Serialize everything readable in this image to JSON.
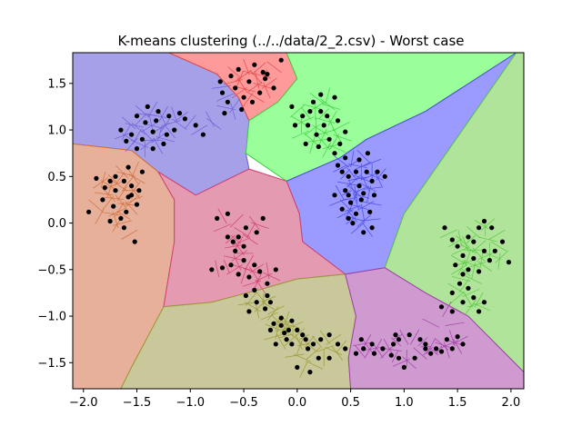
{
  "chart_data": {
    "type": "scatter",
    "title": "K-means clustering (../../data/2_2.csv) - Worst case",
    "xlabel": "",
    "ylabel": "",
    "xlim": [
      -2.1,
      2.12
    ],
    "ylim": [
      -1.78,
      1.83
    ],
    "xticks": [
      -2.0,
      -1.5,
      -1.0,
      -0.5,
      0.0,
      0.5,
      1.0,
      1.5,
      2.0
    ],
    "yticks": [
      -1.5,
      -1.0,
      -0.5,
      0.0,
      0.5,
      1.0,
      1.5
    ],
    "xtick_labels": [
      "−2.0",
      "−1.5",
      "−1.0",
      "−0.5",
      "0.0",
      "0.5",
      "1.0",
      "1.5",
      "2.0"
    ],
    "ytick_labels": [
      "−1.5",
      "−1.0",
      "−0.5",
      "0.0",
      "0.5",
      "1.0",
      "1.5"
    ],
    "grid": false,
    "clusters": [
      {
        "fill": "#a6a0e8",
        "edge": "#6c5fd6",
        "region": [
          [
            -2.1,
            1.83
          ],
          [
            -1.2,
            1.83
          ],
          [
            -0.75,
            1.6
          ],
          [
            -0.55,
            1.35
          ],
          [
            -0.45,
            1.1
          ],
          [
            -0.48,
            0.75
          ],
          [
            -0.45,
            0.58
          ],
          [
            -0.95,
            0.3
          ],
          [
            -1.3,
            0.55
          ],
          [
            -1.55,
            0.78
          ],
          [
            -2.1,
            0.85
          ]
        ]
      },
      {
        "fill": "#ff9a9a",
        "edge": "#e04848",
        "region": [
          [
            -1.2,
            1.83
          ],
          [
            -0.1,
            1.83
          ],
          [
            0.0,
            1.55
          ],
          [
            -0.18,
            1.3
          ],
          [
            -0.45,
            1.1
          ],
          [
            -0.55,
            1.35
          ],
          [
            -0.75,
            1.6
          ]
        ]
      },
      {
        "fill": "#9aff9a",
        "edge": "#40cc40",
        "region": [
          [
            -0.1,
            1.83
          ],
          [
            2.05,
            1.83
          ],
          [
            1.2,
            1.2
          ],
          [
            0.65,
            0.9
          ],
          [
            0.4,
            0.7
          ],
          [
            -0.1,
            0.45
          ],
          [
            -0.48,
            0.75
          ],
          [
            -0.45,
            1.1
          ],
          [
            -0.18,
            1.3
          ],
          [
            0.0,
            1.55
          ]
        ]
      },
      {
        "fill": "#9a9aff",
        "edge": "#4a4ae0",
        "region": [
          [
            2.05,
            1.83
          ],
          [
            1.0,
            0.1
          ],
          [
            0.82,
            -0.48
          ],
          [
            0.45,
            -0.55
          ],
          [
            0.05,
            -0.2
          ],
          [
            0.02,
            0.1
          ],
          [
            -0.1,
            0.45
          ],
          [
            0.4,
            0.7
          ],
          [
            0.65,
            0.9
          ],
          [
            1.2,
            1.2
          ]
        ]
      },
      {
        "fill": "#b0e49a",
        "edge": "#58c840",
        "region": [
          [
            2.05,
            1.83
          ],
          [
            2.12,
            1.83
          ],
          [
            2.12,
            -1.6
          ],
          [
            1.6,
            -1.0
          ],
          [
            1.2,
            -0.75
          ],
          [
            0.82,
            -0.48
          ],
          [
            1.0,
            0.1
          ]
        ]
      },
      {
        "fill": "#e6b09a",
        "edge": "#d0703c",
        "region": [
          [
            -2.1,
            0.85
          ],
          [
            -1.55,
            0.78
          ],
          [
            -1.3,
            0.55
          ],
          [
            -1.15,
            0.25
          ],
          [
            -1.15,
            -0.2
          ],
          [
            -1.25,
            -0.9
          ],
          [
            -1.55,
            -1.55
          ],
          [
            -1.65,
            -1.78
          ],
          [
            -2.1,
            -1.78
          ]
        ]
      },
      {
        "fill": "#e49ab0",
        "edge": "#d04070",
        "region": [
          [
            -1.3,
            0.55
          ],
          [
            -0.95,
            0.3
          ],
          [
            -0.45,
            0.58
          ],
          [
            -0.1,
            0.45
          ],
          [
            0.02,
            0.1
          ],
          [
            0.05,
            -0.2
          ],
          [
            0.45,
            -0.55
          ],
          [
            0.0,
            -0.6
          ],
          [
            -0.3,
            -0.7
          ],
          [
            -0.8,
            -0.85
          ],
          [
            -1.25,
            -0.9
          ],
          [
            -1.15,
            -0.2
          ],
          [
            -1.15,
            0.25
          ]
        ]
      },
      {
        "fill": "#c8c89a",
        "edge": "#9a9a30",
        "region": [
          [
            -1.25,
            -0.9
          ],
          [
            -0.8,
            -0.85
          ],
          [
            -0.3,
            -0.7
          ],
          [
            0.0,
            -0.6
          ],
          [
            0.45,
            -0.55
          ],
          [
            0.55,
            -1.0
          ],
          [
            0.48,
            -1.45
          ],
          [
            0.5,
            -1.78
          ],
          [
            -1.65,
            -1.78
          ],
          [
            -1.55,
            -1.55
          ]
        ]
      },
      {
        "fill": "#cf9ad0",
        "edge": "#a040a8",
        "region": [
          [
            0.45,
            -0.55
          ],
          [
            0.82,
            -0.48
          ],
          [
            1.2,
            -0.75
          ],
          [
            1.6,
            -1.0
          ],
          [
            2.12,
            -1.6
          ],
          [
            2.12,
            -1.78
          ],
          [
            0.5,
            -1.78
          ],
          [
            0.48,
            -1.45
          ],
          [
            0.55,
            -1.0
          ]
        ]
      }
    ],
    "points": [
      [
        -0.72,
        1.52
      ],
      [
        -0.62,
        1.58
      ],
      [
        -0.55,
        1.65
      ],
      [
        -0.4,
        1.7
      ],
      [
        -0.3,
        1.55
      ],
      [
        -0.22,
        1.45
      ],
      [
        -0.35,
        1.4
      ],
      [
        -0.5,
        1.35
      ],
      [
        -0.65,
        1.3
      ],
      [
        -0.58,
        1.45
      ],
      [
        -0.45,
        1.52
      ],
      [
        -0.32,
        1.62
      ],
      [
        -0.7,
        1.4
      ],
      [
        -0.52,
        1.22
      ],
      [
        -0.42,
        1.3
      ],
      [
        -0.68,
        1.18
      ],
      [
        -0.28,
        1.6
      ],
      [
        -0.15,
        1.75
      ],
      [
        -1.5,
        1.15
      ],
      [
        -1.42,
        1.08
      ],
      [
        -1.3,
        1.2
      ],
      [
        -1.2,
        1.15
      ],
      [
        -1.1,
        1.18
      ],
      [
        -1.35,
        0.98
      ],
      [
        -1.45,
        0.9
      ],
      [
        -1.22,
        0.95
      ],
      [
        -1.55,
        0.95
      ],
      [
        -1.65,
        1.0
      ],
      [
        -1.35,
        0.8
      ],
      [
        -1.25,
        0.85
      ],
      [
        -1.5,
        0.8
      ],
      [
        -1.6,
        0.88
      ],
      [
        -1.15,
        1.0
      ],
      [
        -1.05,
        1.12
      ],
      [
        -1.32,
        1.1
      ],
      [
        -1.4,
        1.25
      ],
      [
        -0.88,
        0.95
      ],
      [
        -0.95,
        1.05
      ],
      [
        -0.05,
        1.25
      ],
      [
        0.05,
        1.15
      ],
      [
        0.15,
        1.3
      ],
      [
        0.22,
        1.2
      ],
      [
        0.1,
        1.05
      ],
      [
        0.25,
        1.05
      ],
      [
        0.18,
        0.95
      ],
      [
        0.3,
        0.9
      ],
      [
        0.08,
        0.85
      ],
      [
        0.38,
        1.1
      ],
      [
        0.45,
        0.98
      ],
      [
        0.35,
        1.35
      ],
      [
        0.22,
        1.38
      ],
      [
        -0.02,
        1.05
      ],
      [
        0.2,
        0.82
      ],
      [
        0.4,
        0.85
      ],
      [
        0.12,
        1.2
      ],
      [
        0.28,
        1.15
      ],
      [
        0.35,
        0.75
      ],
      [
        0.45,
        0.7
      ],
      [
        0.38,
        0.62
      ],
      [
        0.55,
        0.55
      ],
      [
        0.48,
        0.5
      ],
      [
        0.65,
        0.55
      ],
      [
        0.7,
        0.45
      ],
      [
        0.58,
        0.4
      ],
      [
        0.45,
        0.35
      ],
      [
        0.5,
        0.22
      ],
      [
        0.6,
        0.25
      ],
      [
        0.42,
        0.15
      ],
      [
        0.55,
        0.1
      ],
      [
        0.52,
        0.0
      ],
      [
        0.48,
        0.05
      ],
      [
        0.62,
        0.32
      ],
      [
        0.72,
        0.3
      ],
      [
        0.68,
        0.12
      ],
      [
        0.75,
        0.55
      ],
      [
        0.82,
        0.5
      ],
      [
        0.58,
        0.68
      ],
      [
        0.66,
        0.75
      ],
      [
        0.62,
        -0.1
      ],
      [
        0.7,
        -0.05
      ],
      [
        0.42,
        0.55
      ],
      [
        0.35,
        0.3
      ],
      [
        0.48,
        0.3
      ],
      [
        -1.95,
        0.12
      ],
      [
        -1.82,
        0.25
      ],
      [
        -1.7,
        0.5
      ],
      [
        -1.62,
        0.45
      ],
      [
        -1.55,
        0.4
      ],
      [
        -1.7,
        0.35
      ],
      [
        -1.58,
        0.28
      ],
      [
        -1.72,
        0.18
      ],
      [
        -1.6,
        0.12
      ],
      [
        -1.5,
        0.2
      ],
      [
        -1.65,
        0.05
      ],
      [
        -1.45,
        0.55
      ],
      [
        -1.88,
        0.48
      ],
      [
        -1.8,
        0.38
      ],
      [
        -1.75,
        0.02
      ],
      [
        -1.52,
        -0.2
      ],
      [
        -1.58,
        0.6
      ],
      [
        -1.55,
        0.3
      ],
      [
        -1.48,
        0.35
      ],
      [
        -1.62,
        -0.05
      ],
      [
        -1.75,
        0.45
      ],
      [
        -0.75,
        0.05
      ],
      [
        -0.65,
        0.1
      ],
      [
        -0.55,
        -0.15
      ],
      [
        -0.48,
        -0.05
      ],
      [
        -0.58,
        -0.3
      ],
      [
        -0.5,
        -0.4
      ],
      [
        -0.62,
        -0.45
      ],
      [
        -0.7,
        -0.48
      ],
      [
        -0.55,
        -0.55
      ],
      [
        -0.45,
        -0.58
      ],
      [
        -0.4,
        -0.45
      ],
      [
        -0.35,
        -0.52
      ],
      [
        -0.5,
        -0.25
      ],
      [
        -0.65,
        -0.15
      ],
      [
        -0.4,
        -0.72
      ],
      [
        -0.28,
        -0.78
      ],
      [
        -0.38,
        -0.85
      ],
      [
        -0.28,
        -0.65
      ],
      [
        -0.3,
        -0.92
      ],
      [
        -0.45,
        -0.95
      ],
      [
        -0.48,
        -0.78
      ],
      [
        -0.25,
        -0.85
      ],
      [
        -0.2,
        -0.5
      ],
      [
        -0.32,
        0.05
      ],
      [
        -0.38,
        -0.1
      ],
      [
        -0.8,
        -0.5
      ],
      [
        -0.6,
        -0.2
      ],
      [
        -0.15,
        -1.1
      ],
      [
        -0.05,
        -1.05
      ],
      [
        0.0,
        -1.15
      ],
      [
        -0.1,
        -1.25
      ],
      [
        -0.2,
        -1.3
      ],
      [
        -0.05,
        -1.3
      ],
      [
        0.08,
        -1.25
      ],
      [
        0.15,
        -1.3
      ],
      [
        0.22,
        -1.25
      ],
      [
        0.3,
        -1.2
      ],
      [
        0.38,
        -1.3
      ],
      [
        0.45,
        -1.35
      ],
      [
        0.1,
        -1.35
      ],
      [
        -0.15,
        -1.02
      ],
      [
        -0.25,
        -1.15
      ],
      [
        0.0,
        -1.55
      ],
      [
        0.12,
        -1.6
      ],
      [
        0.2,
        -1.45
      ],
      [
        0.3,
        -1.45
      ],
      [
        -0.08,
        -1.15
      ],
      [
        -0.22,
        -1.08
      ],
      [
        -0.12,
        -1.18
      ],
      [
        0.05,
        -1.2
      ],
      [
        0.6,
        -1.25
      ],
      [
        0.7,
        -1.3
      ],
      [
        0.8,
        -1.35
      ],
      [
        0.9,
        -1.3
      ],
      [
        0.95,
        -1.25
      ],
      [
        1.05,
        -1.2
      ],
      [
        1.15,
        -1.25
      ],
      [
        1.2,
        -1.35
      ],
      [
        1.3,
        -1.35
      ],
      [
        1.25,
        -1.4
      ],
      [
        1.35,
        -1.38
      ],
      [
        1.45,
        -1.35
      ],
      [
        1.1,
        -1.45
      ],
      [
        1.0,
        -1.55
      ],
      [
        0.95,
        -1.45
      ],
      [
        0.88,
        -1.42
      ],
      [
        0.72,
        -1.4
      ],
      [
        0.62,
        -1.35
      ],
      [
        0.55,
        -1.4
      ],
      [
        1.4,
        -1.25
      ],
      [
        1.5,
        -1.22
      ],
      [
        1.55,
        -1.3
      ],
      [
        1.2,
        -1.3
      ],
      [
        0.92,
        -1.2
      ],
      [
        1.5,
        -0.25
      ],
      [
        1.6,
        -0.15
      ],
      [
        1.7,
        -0.05
      ],
      [
        1.75,
        0.02
      ],
      [
        1.82,
        -0.05
      ],
      [
        1.65,
        -0.2
      ],
      [
        1.55,
        -0.35
      ],
      [
        1.48,
        -0.45
      ],
      [
        1.55,
        -0.55
      ],
      [
        1.6,
        -0.5
      ],
      [
        1.7,
        -0.52
      ],
      [
        1.8,
        -0.4
      ],
      [
        1.85,
        -0.3
      ],
      [
        1.92,
        -0.2
      ],
      [
        1.98,
        -0.42
      ],
      [
        1.75,
        -0.3
      ],
      [
        1.65,
        -0.38
      ],
      [
        1.52,
        -0.65
      ],
      [
        1.45,
        -0.75
      ],
      [
        1.55,
        -0.85
      ],
      [
        1.65,
        -0.8
      ],
      [
        1.7,
        -0.95
      ],
      [
        1.75,
        -0.85
      ],
      [
        1.35,
        -0.9
      ],
      [
        1.45,
        -0.95
      ],
      [
        1.6,
        -0.7
      ],
      [
        1.45,
        -0.18
      ],
      [
        1.38,
        -0.05
      ]
    ]
  }
}
